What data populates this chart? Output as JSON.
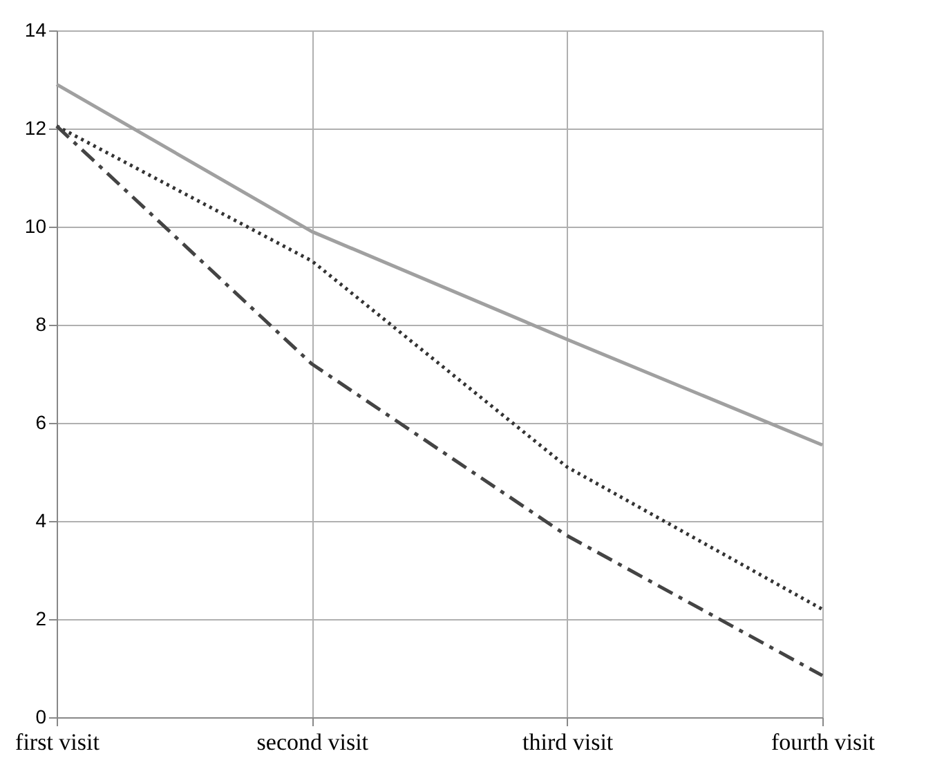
{
  "chart_data": {
    "type": "line",
    "categories": [
      "first visit",
      "second visit",
      "third visit",
      "fourth visit"
    ],
    "series": [
      {
        "color": "#a0a0a0",
        "line_style": "solid",
        "values": [
          12.9,
          9.9,
          7.7,
          5.55
        ]
      },
      {
        "color": "#333333",
        "line_style": "dotted",
        "values": [
          12.05,
          9.3,
          5.1,
          2.2
        ]
      },
      {
        "color": "#444444",
        "line_style": "dashed",
        "values": [
          12.05,
          7.2,
          3.7,
          0.85
        ]
      }
    ],
    "ylim": [
      0,
      14
    ],
    "yticks": [
      0,
      2,
      4,
      6,
      8,
      10,
      12,
      14
    ],
    "grid": true,
    "marker": "none"
  }
}
